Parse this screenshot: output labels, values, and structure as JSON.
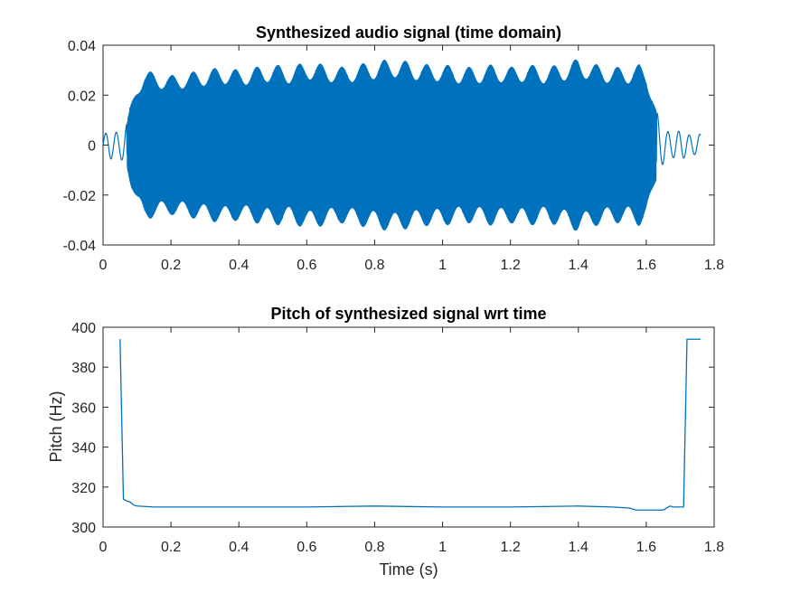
{
  "colors": {
    "series": "#0072bd",
    "axes": "#262626",
    "background": "#ffffff"
  },
  "chart_data": [
    {
      "type": "line",
      "title": "Synthesized audio signal (time domain)",
      "xlabel": "",
      "ylabel": "",
      "xlim": [
        0,
        1.8
      ],
      "ylim": [
        -0.04,
        0.04
      ],
      "xticks": [
        "0",
        "0.2",
        "0.4",
        "0.6",
        "0.8",
        "1",
        "1.2",
        "1.4",
        "1.6",
        "1.8"
      ],
      "yticks": [
        "-0.04",
        "-0.02",
        "0",
        "0.02",
        "0.04"
      ],
      "xtick_values": [
        0,
        0.2,
        0.4,
        0.6,
        0.8,
        1.0,
        1.2,
        1.4,
        1.6,
        1.8
      ],
      "ytick_values": [
        -0.04,
        -0.02,
        0,
        0.02,
        0.04
      ],
      "grid": false,
      "envelope": {
        "t": [
          0.0,
          0.02,
          0.05,
          0.07,
          0.08,
          0.1,
          0.12,
          0.15,
          0.2,
          0.25,
          0.3,
          0.35,
          0.4,
          0.45,
          0.5,
          0.55,
          0.6,
          0.65,
          0.7,
          0.75,
          0.8,
          0.85,
          0.9,
          0.95,
          1.0,
          1.05,
          1.1,
          1.15,
          1.2,
          1.25,
          1.3,
          1.35,
          1.4,
          1.45,
          1.5,
          1.55,
          1.58,
          1.6,
          1.62,
          1.64,
          1.66,
          1.7,
          1.75
        ],
        "amp": [
          0.004,
          0.005,
          0.006,
          0.008,
          0.014,
          0.022,
          0.027,
          0.026,
          0.025,
          0.026,
          0.027,
          0.028,
          0.027,
          0.028,
          0.029,
          0.028,
          0.03,
          0.029,
          0.028,
          0.029,
          0.03,
          0.031,
          0.03,
          0.029,
          0.029,
          0.028,
          0.028,
          0.029,
          0.028,
          0.029,
          0.028,
          0.029,
          0.031,
          0.029,
          0.028,
          0.028,
          0.029,
          0.027,
          0.018,
          0.008,
          0.006,
          0.005,
          0.004
        ]
      },
      "series": [
        {
          "values_note": "",
          "t_start": 0.0,
          "t_end": 1.76
        }
      ]
    },
    {
      "type": "line",
      "title": "Pitch of synthesized signal wrt time",
      "xlabel": "Time (s)",
      "ylabel": "Pitch (Hz)",
      "xlim": [
        0,
        1.8
      ],
      "ylim": [
        300,
        400
      ],
      "xticks": [
        "0",
        "0.2",
        "0.4",
        "0.6",
        "0.8",
        "1",
        "1.2",
        "1.4",
        "1.6",
        "1.8"
      ],
      "yticks": [
        "300",
        "320",
        "340",
        "360",
        "380",
        "400"
      ],
      "xtick_values": [
        0,
        0.2,
        0.4,
        0.6,
        0.8,
        1.0,
        1.2,
        1.4,
        1.6,
        1.8
      ],
      "ytick_values": [
        300,
        320,
        340,
        360,
        380,
        400
      ],
      "grid": false,
      "x": [
        0.05,
        0.06,
        0.07,
        0.08,
        0.09,
        0.1,
        0.15,
        0.2,
        0.4,
        0.6,
        0.8,
        1.0,
        1.2,
        1.4,
        1.5,
        1.55,
        1.57,
        1.6,
        1.65,
        1.67,
        1.68,
        1.7,
        1.71,
        1.72,
        1.73,
        1.76
      ],
      "y": [
        394,
        314,
        313,
        312.5,
        311,
        310.5,
        310,
        310,
        310,
        310,
        310.5,
        310,
        310,
        310.5,
        310,
        309.5,
        308.5,
        308.5,
        308.5,
        310.5,
        310,
        310,
        310,
        394,
        394,
        394
      ]
    }
  ]
}
